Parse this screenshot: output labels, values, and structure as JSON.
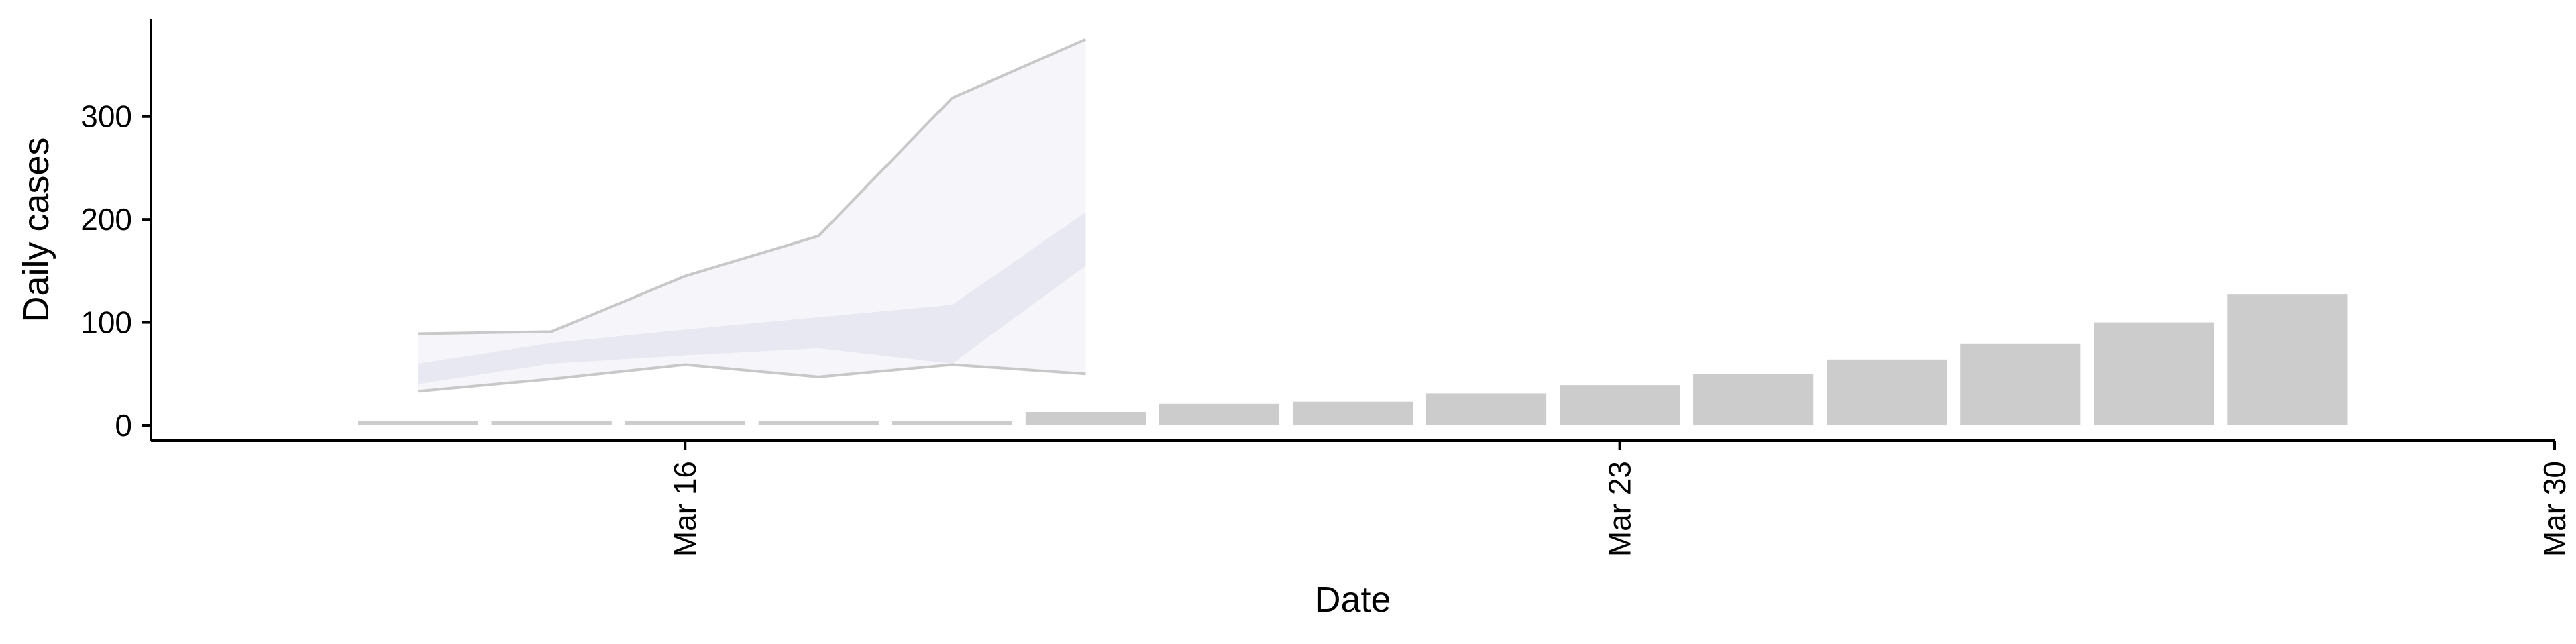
{
  "chart_data": {
    "type": "bar",
    "xlabel": "Date",
    "ylabel": "Daily cases",
    "ylim": [
      -15,
      395
    ],
    "yticks": [
      0,
      100,
      200,
      300
    ],
    "xlim": [
      "2020-03-12",
      "2020-03-30"
    ],
    "xticks": [
      {
        "date": "2020-03-16",
        "label": "Mar 16"
      },
      {
        "date": "2020-03-23",
        "label": "Mar 23"
      },
      {
        "date": "2020-03-30",
        "label": "Mar 30"
      }
    ],
    "grid": false,
    "legend": "none",
    "bar_color": "#cccccc",
    "band_colors": {
      "outer_fill": "#f5f5fa",
      "inner_fill": "#e8e8f2",
      "outer_line": "#c8c8c8"
    },
    "bars": [
      {
        "date": "2020-03-14",
        "value": 2
      },
      {
        "date": "2020-03-15",
        "value": 2
      },
      {
        "date": "2020-03-16",
        "value": 2
      },
      {
        "date": "2020-03-17",
        "value": 2
      },
      {
        "date": "2020-03-18",
        "value": 4
      },
      {
        "date": "2020-03-19",
        "value": 13
      },
      {
        "date": "2020-03-20",
        "value": 21
      },
      {
        "date": "2020-03-21",
        "value": 23
      },
      {
        "date": "2020-03-22",
        "value": 31
      },
      {
        "date": "2020-03-23",
        "value": 39
      },
      {
        "date": "2020-03-24",
        "value": 50
      },
      {
        "date": "2020-03-25",
        "value": 64
      },
      {
        "date": "2020-03-26",
        "value": 79
      },
      {
        "date": "2020-03-27",
        "value": 100
      },
      {
        "date": "2020-03-28",
        "value": 127
      }
    ],
    "forecast_band": [
      {
        "date": "2020-03-14",
        "outer_low": 33,
        "outer_high": 89,
        "inner_low": 40,
        "inner_high": 60
      },
      {
        "date": "2020-03-15",
        "outer_low": 45,
        "outer_high": 91,
        "inner_low": 60,
        "inner_high": 80
      },
      {
        "date": "2020-03-16",
        "outer_low": 59,
        "outer_high": 145,
        "inner_low": 68,
        "inner_high": 93
      },
      {
        "date": "2020-03-17",
        "outer_low": 47,
        "outer_high": 184,
        "inner_low": 75,
        "inner_high": 105
      },
      {
        "date": "2020-03-18",
        "outer_low": 59,
        "outer_high": 318,
        "inner_low": 60,
        "inner_high": 117
      },
      {
        "date": "2020-03-19",
        "outer_low": 50,
        "outer_high": 375,
        "inner_low": 155,
        "inner_high": 207
      }
    ]
  }
}
